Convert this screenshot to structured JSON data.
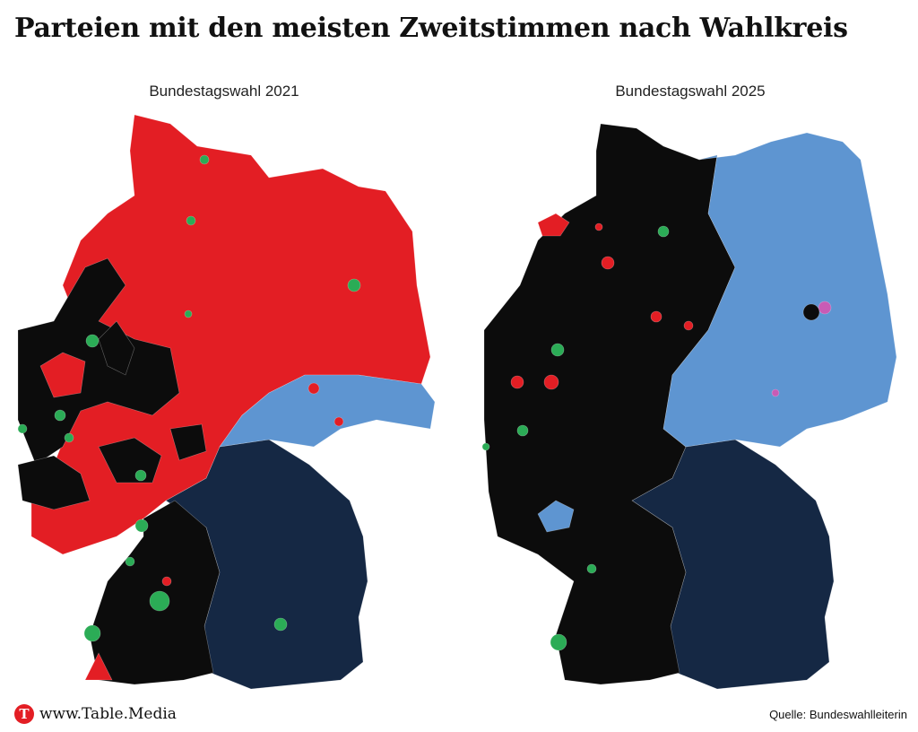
{
  "title": "Parteien mit den meisten Zweitstimmen nach Wahlkreis",
  "colors": {
    "spd": "#e31e24",
    "cdu": "#0c0c0c",
    "csu": "#152844",
    "afd": "#5e95d1",
    "gruene": "#2bac56",
    "linke": "#c85bb5"
  },
  "maps": [
    {
      "title": "Bundestagswahl 2021"
    },
    {
      "title": "Bundestagswahl 2025"
    }
  ],
  "footer": {
    "logo_letter": "T",
    "site": "www.Table.Media",
    "source": "Quelle: Bundeswahlleiterin"
  }
}
